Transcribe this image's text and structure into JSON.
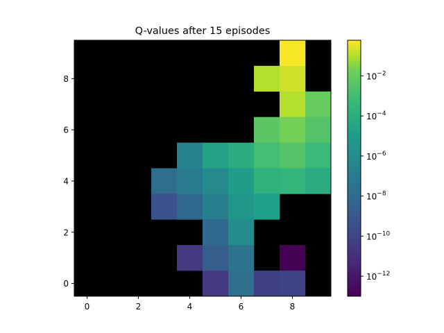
{
  "chart_data": {
    "type": "heatmap",
    "title": "Q-values after 15 episodes",
    "xlabel": "",
    "ylabel": "",
    "colormap": "viridis",
    "scale": "log",
    "background_color": "#000000",
    "x_ticks": [
      "0",
      "2",
      "4",
      "6",
      "8"
    ],
    "y_ticks": [
      "0",
      "2",
      "4",
      "6",
      "8"
    ],
    "xlim": [
      -0.5,
      9.5
    ],
    "ylim": [
      -0.5,
      9.5
    ],
    "colorbar": {
      "range": [
        1e-13,
        0.6
      ],
      "ticks": [
        {
          "value": 1e-12,
          "base": "10",
          "exp": "−12"
        },
        {
          "value": 1e-10,
          "base": "10",
          "exp": "−10"
        },
        {
          "value": 1e-08,
          "base": "10",
          "exp": "−8"
        },
        {
          "value": 1e-06,
          "base": "10",
          "exp": "−6"
        },
        {
          "value": 0.0001,
          "base": "10",
          "exp": "−4"
        },
        {
          "value": 0.01,
          "base": "10",
          "exp": "−2"
        }
      ]
    },
    "cells": [
      {
        "x": 8,
        "y": 9,
        "value": 0.5
      },
      {
        "x": 7,
        "y": 8,
        "value": 0.1
      },
      {
        "x": 8,
        "y": 8,
        "value": 0.2
      },
      {
        "x": 8,
        "y": 7,
        "value": 0.1
      },
      {
        "x": 9,
        "y": 7,
        "value": 0.01
      },
      {
        "x": 7,
        "y": 6,
        "value": 0.005
      },
      {
        "x": 8,
        "y": 6,
        "value": 0.02
      },
      {
        "x": 9,
        "y": 6,
        "value": 0.003
      },
      {
        "x": 4,
        "y": 5,
        "value": 3e-07
      },
      {
        "x": 5,
        "y": 5,
        "value": 2e-05
      },
      {
        "x": 6,
        "y": 5,
        "value": 0.0001
      },
      {
        "x": 7,
        "y": 5,
        "value": 0.001
      },
      {
        "x": 8,
        "y": 5,
        "value": 0.003
      },
      {
        "x": 9,
        "y": 5,
        "value": 0.0005
      },
      {
        "x": 3,
        "y": 4,
        "value": 1.5e-08
      },
      {
        "x": 4,
        "y": 4,
        "value": 8e-08
      },
      {
        "x": 5,
        "y": 4,
        "value": 7e-07
      },
      {
        "x": 6,
        "y": 4,
        "value": 1e-05
      },
      {
        "x": 7,
        "y": 4,
        "value": 0.00015
      },
      {
        "x": 8,
        "y": 4,
        "value": 0.00025
      },
      {
        "x": 9,
        "y": 4,
        "value": 6e-05
      },
      {
        "x": 3,
        "y": 3,
        "value": 5e-10
      },
      {
        "x": 4,
        "y": 3,
        "value": 8e-09
      },
      {
        "x": 5,
        "y": 3,
        "value": 1.2e-07
      },
      {
        "x": 6,
        "y": 3,
        "value": 4e-06
      },
      {
        "x": 7,
        "y": 3,
        "value": 1.2e-05
      },
      {
        "x": 5,
        "y": 2,
        "value": 1e-08
      },
      {
        "x": 6,
        "y": 2,
        "value": 1e-06
      },
      {
        "x": 4,
        "y": 1,
        "value": 3e-11
      },
      {
        "x": 5,
        "y": 1,
        "value": 2e-09
      },
      {
        "x": 6,
        "y": 1,
        "value": 3e-08
      },
      {
        "x": 8,
        "y": 1,
        "value": 8e-14
      },
      {
        "x": 5,
        "y": 0,
        "value": 3e-11
      },
      {
        "x": 6,
        "y": 0,
        "value": 2e-08
      },
      {
        "x": 7,
        "y": 0,
        "value": 7e-11
      },
      {
        "x": 8,
        "y": 0,
        "value": 8e-11
      }
    ]
  }
}
